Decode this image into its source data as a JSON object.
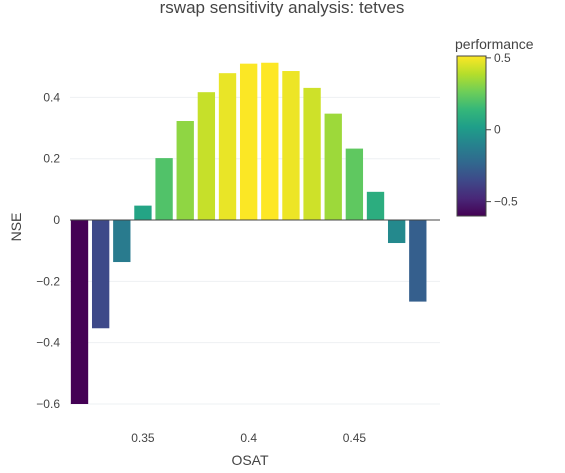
{
  "chart_data": {
    "type": "bar",
    "title": "rswap sensitivity analysis: tetves",
    "xlabel": "OSAT",
    "ylabel": "NSE",
    "x": [
      0.32,
      0.33,
      0.34,
      0.35,
      0.36,
      0.37,
      0.38,
      0.39,
      0.4,
      0.41,
      0.42,
      0.43,
      0.44,
      0.45,
      0.46,
      0.47,
      0.48
    ],
    "values": [
      -0.6,
      -0.353,
      -0.137,
      0.047,
      0.202,
      0.323,
      0.417,
      0.479,
      0.51,
      0.513,
      0.486,
      0.431,
      0.347,
      0.233,
      0.092,
      -0.075,
      -0.266
    ],
    "xlim": [
      0.3155,
      0.4905
    ],
    "ylim": [
      -0.6,
      0.535
    ],
    "xticks": [
      0.35,
      0.4,
      0.45
    ],
    "xtick_labels": [
      "0.35",
      "0.4",
      "0.45"
    ],
    "yticks": [
      -0.6,
      -0.4,
      -0.2,
      0,
      0.2,
      0.4
    ],
    "ytick_labels": [
      "−0.6",
      "−0.4",
      "−0.2",
      "0",
      "0.2",
      "0.4"
    ],
    "grid": true,
    "colorbar": {
      "title": "performance",
      "colorscale": "Viridis",
      "range": [
        -0.6,
        0.513
      ],
      "ticks": [
        -0.5,
        0,
        0.5
      ],
      "tick_labels": [
        "−0.5",
        "0",
        "0.5"
      ]
    }
  }
}
